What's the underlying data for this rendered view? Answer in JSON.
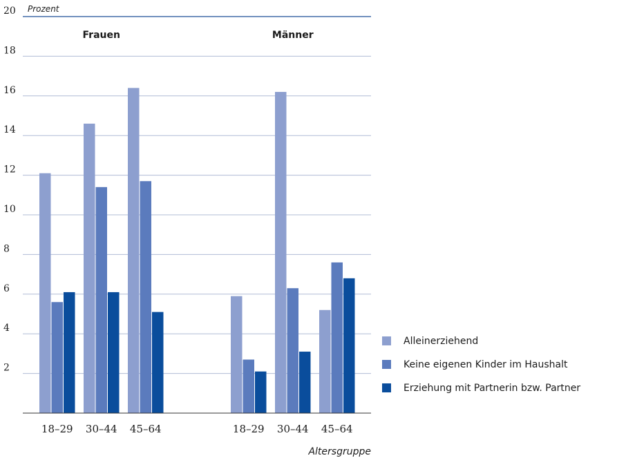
{
  "chart_data": {
    "type": "bar",
    "unit_label": "Prozent",
    "xlabel": "Altersgruppe",
    "ylim": [
      0,
      20
    ],
    "yticks": [
      "",
      "2",
      "4",
      "6",
      "8",
      "10",
      "12",
      "14",
      "16",
      "18",
      "20"
    ],
    "grid": true,
    "legend_position": "right",
    "groups": [
      {
        "name": "Frauen",
        "categories": [
          "18–29",
          "30–44",
          "45–64"
        ],
        "series": [
          {
            "name": "Alleinerziehend",
            "values": [
              12.1,
              14.6,
              16.4
            ]
          },
          {
            "name": "Keine eigenen Kinder im Haushalt",
            "values": [
              5.6,
              11.4,
              11.7
            ]
          },
          {
            "name": "Erziehung mit Partnerin bzw. Partner",
            "values": [
              6.1,
              6.1,
              5.1
            ]
          }
        ]
      },
      {
        "name": "Männer",
        "categories": [
          "18–29",
          "30–44",
          "45–64"
        ],
        "series": [
          {
            "name": "Alleinerziehend",
            "values": [
              5.9,
              16.2,
              5.2
            ]
          },
          {
            "name": "Keine eigenen Kinder im Haushalt",
            "values": [
              2.7,
              6.3,
              7.6
            ]
          },
          {
            "name": "Erziehung mit Partnerin bzw. Partner",
            "values": [
              2.1,
              3.1,
              6.8
            ]
          }
        ]
      }
    ],
    "legend": [
      {
        "label": "Alleinerziehend",
        "color": "#8d9fcf"
      },
      {
        "label": "Keine eigenen Kinder im Haushalt",
        "color": "#5b7bbd"
      },
      {
        "label": "Erziehung mit Partnerin bzw. Partner",
        "color": "#0a4d9c"
      }
    ],
    "colors": {
      "grid": "#b0bcd6",
      "top_grid": "#1f4f96",
      "axis": "#333333"
    }
  }
}
